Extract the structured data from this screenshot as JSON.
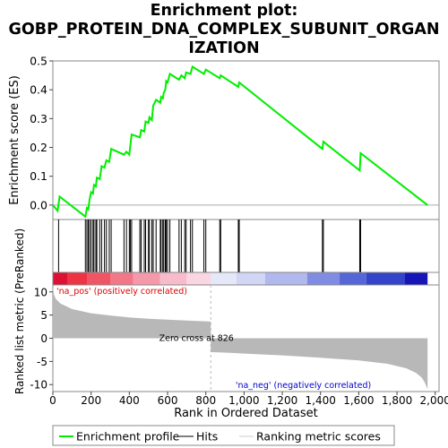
{
  "title_lines": [
    "Enrichment plot:",
    "GOBP_PROTEIN_DNA_COMPLEX_SUBUNIT_ORGAN",
    "IZATION"
  ],
  "chart_data": {
    "type": "line",
    "xlabel": "Rank in Ordered Dataset",
    "es_panel": {
      "ylabel": "Enrichment score (ES)",
      "ylim": [
        -0.05,
        0.5
      ],
      "yticks": [
        0.0,
        0.1,
        0.2,
        0.3,
        0.4,
        0.5
      ],
      "ytick_labels": [
        "0.0",
        "0.1",
        "0.2",
        "0.3",
        "0.4",
        "0.5"
      ],
      "line_color": "#00ee00",
      "es_curve": [
        [
          0,
          0.0
        ],
        [
          25,
          -0.02
        ],
        [
          35,
          0.03
        ],
        [
          170,
          -0.04
        ],
        [
          178,
          -0.01
        ],
        [
          185,
          -0.015
        ],
        [
          192,
          0.02
        ],
        [
          200,
          0.045
        ],
        [
          210,
          0.04
        ],
        [
          215,
          0.07
        ],
        [
          225,
          0.065
        ],
        [
          230,
          0.095
        ],
        [
          245,
          0.09
        ],
        [
          255,
          0.135
        ],
        [
          270,
          0.13
        ],
        [
          280,
          0.155
        ],
        [
          295,
          0.15
        ],
        [
          305,
          0.195
        ],
        [
          372,
          0.175
        ],
        [
          385,
          0.185
        ],
        [
          400,
          0.175
        ],
        [
          412,
          0.245
        ],
        [
          455,
          0.235
        ],
        [
          462,
          0.26
        ],
        [
          478,
          0.255
        ],
        [
          485,
          0.29
        ],
        [
          500,
          0.285
        ],
        [
          505,
          0.305
        ],
        [
          518,
          0.295
        ],
        [
          525,
          0.345
        ],
        [
          540,
          0.365
        ],
        [
          562,
          0.355
        ],
        [
          566,
          0.375
        ],
        [
          575,
          0.37
        ],
        [
          580,
          0.39
        ],
        [
          588,
          0.4
        ],
        [
          593,
          0.43
        ],
        [
          600,
          0.425
        ],
        [
          612,
          0.455
        ],
        [
          660,
          0.435
        ],
        [
          672,
          0.45
        ],
        [
          690,
          0.44
        ],
        [
          697,
          0.46
        ],
        [
          720,
          0.455
        ],
        [
          730,
          0.48
        ],
        [
          790,
          0.455
        ],
        [
          800,
          0.47
        ],
        [
          873,
          0.44
        ],
        [
          878,
          0.45
        ],
        [
          970,
          0.41
        ],
        [
          975,
          0.425
        ],
        [
          1410,
          0.195
        ],
        [
          1415,
          0.22
        ],
        [
          1605,
          0.12
        ],
        [
          1610,
          0.18
        ],
        [
          1960,
          0.0
        ]
      ]
    },
    "hits": [
      30,
      170,
      178,
      185,
      192,
      200,
      210,
      215,
      225,
      230,
      245,
      255,
      270,
      280,
      295,
      305,
      372,
      385,
      400,
      405,
      412,
      455,
      462,
      478,
      485,
      500,
      505,
      518,
      525,
      540,
      562,
      566,
      575,
      580,
      588,
      593,
      600,
      612,
      660,
      672,
      690,
      697,
      720,
      730,
      790,
      800,
      873,
      878,
      970,
      975,
      1410,
      1415,
      1605,
      1610
    ],
    "heatmap_bar": {
      "x_range": [
        0,
        1960
      ],
      "gradient": [
        {
          "from": 0,
          "to": 75,
          "color": "#dd1133"
        },
        {
          "from": 75,
          "to": 180,
          "color": "#ee3344"
        },
        {
          "from": 180,
          "to": 300,
          "color": "#f05566"
        },
        {
          "from": 300,
          "to": 420,
          "color": "#f27788"
        },
        {
          "from": 420,
          "to": 560,
          "color": "#f599aa"
        },
        {
          "from": 560,
          "to": 700,
          "color": "#f8bbcc"
        },
        {
          "from": 700,
          "to": 826,
          "color": "#fad5e2"
        },
        {
          "from": 826,
          "to": 960,
          "color": "#e5e8f8"
        },
        {
          "from": 960,
          "to": 1110,
          "color": "#d0d6f4"
        },
        {
          "from": 1110,
          "to": 1330,
          "color": "#b0b8ee"
        },
        {
          "from": 1330,
          "to": 1500,
          "color": "#7f8ce2"
        },
        {
          "from": 1500,
          "to": 1640,
          "color": "#5566d6"
        },
        {
          "from": 1640,
          "to": 1840,
          "color": "#3344c8"
        },
        {
          "from": 1840,
          "to": 1960,
          "color": "#1616b8"
        }
      ]
    },
    "metric_panel": {
      "ylabel": "Ranked list metric (PreRanked)",
      "ylim": [
        -11.5,
        11.5
      ],
      "yticks": [
        -10,
        -5,
        0,
        5,
        10
      ],
      "ytick_labels": [
        "-10",
        "-5",
        "0",
        "5",
        "10"
      ],
      "fill_color": "#b8b8b8",
      "metric_curve": [
        [
          0,
          11.0
        ],
        [
          5,
          9.5
        ],
        [
          15,
          8.5
        ],
        [
          40,
          7.5
        ],
        [
          100,
          6.3
        ],
        [
          200,
          5.4
        ],
        [
          300,
          4.9
        ],
        [
          400,
          4.5
        ],
        [
          500,
          4.2
        ],
        [
          600,
          4.0
        ],
        [
          700,
          3.8
        ],
        [
          826,
          3.6
        ],
        [
          826,
          -3.0
        ],
        [
          900,
          -3.1
        ],
        [
          1000,
          -3.3
        ],
        [
          1200,
          -3.7
        ],
        [
          1400,
          -4.2
        ],
        [
          1600,
          -4.8
        ],
        [
          1750,
          -5.5
        ],
        [
          1850,
          -6.5
        ],
        [
          1900,
          -7.5
        ],
        [
          1930,
          -8.5
        ],
        [
          1945,
          -9.5
        ],
        [
          1955,
          -10.5
        ],
        [
          1960,
          -11.0
        ]
      ],
      "zero_cross": 826,
      "zero_cross_label": "Zero cross at 826",
      "pos_label": "'na_pos' (positively correlated)",
      "neg_label": "'na_neg' (negatively correlated)",
      "pos_color": "#dd0000",
      "neg_color": "#0000cc"
    },
    "xlim": [
      0,
      2020
    ],
    "xticks": [
      0,
      200,
      400,
      600,
      800,
      1000,
      1200,
      1400,
      1600,
      1800,
      2000
    ],
    "xtick_labels": [
      "0",
      "200",
      "400",
      "600",
      "800",
      "1,000",
      "1,200",
      "1,400",
      "1,600",
      "1,800",
      "2,000"
    ],
    "legend": [
      {
        "label": "Enrichment profile",
        "color": "#00ee00"
      },
      {
        "label": "Hits",
        "color": "#000000"
      },
      {
        "label": "Ranking metric scores",
        "color": "#cccccc"
      }
    ]
  }
}
